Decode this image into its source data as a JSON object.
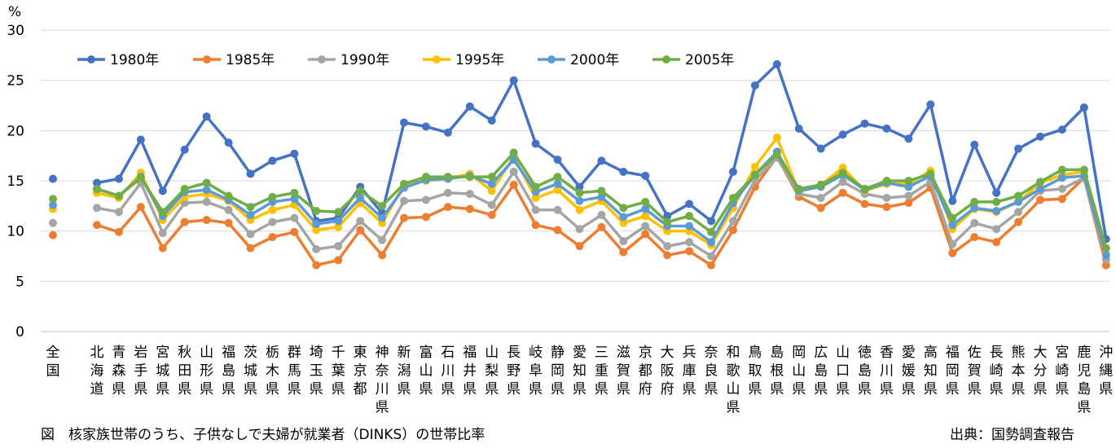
{
  "caption": "図　核家族世帯のうち、子供なしで夫婦が就業者（DINKS）の世帯比率",
  "source": "出典：国勢調査報告",
  "chart_data": {
    "type": "line",
    "ylabel": "%",
    "ylim": [
      0,
      30
    ],
    "yticks": [
      0,
      5,
      10,
      15,
      20,
      25,
      30
    ],
    "grid": true,
    "legend_position": "top-left",
    "categories": [
      "全国",
      "北海道",
      "青森県",
      "岩手県",
      "宮城県",
      "秋田県",
      "山形県",
      "福島県",
      "茨城県",
      "栃木県",
      "群馬県",
      "埼玉県",
      "千葉県",
      "東京都",
      "神奈川県",
      "新潟県",
      "富山県",
      "石川県",
      "福井県",
      "山梨県",
      "長野県",
      "岐阜県",
      "静岡県",
      "愛知県",
      "三重県",
      "滋賀県",
      "京都府",
      "大阪府",
      "兵庫県",
      "奈良県",
      "和歌山県",
      "鳥取県",
      "島根県",
      "岡山県",
      "広島県",
      "山口県",
      "徳島県",
      "香川県",
      "愛媛県",
      "高知県",
      "福岡県",
      "佐賀県",
      "長崎県",
      "熊本県",
      "大分県",
      "宮崎県",
      "鹿児島県",
      "沖縄県"
    ],
    "series": [
      {
        "name": "1980年",
        "color": "#4472C4",
        "values": [
          15.2,
          14.8,
          15.2,
          19.1,
          14.0,
          18.1,
          21.4,
          18.8,
          15.7,
          17.0,
          17.7,
          11.0,
          11.3,
          14.4,
          11.8,
          20.8,
          20.4,
          19.8,
          22.4,
          21.0,
          25.0,
          18.7,
          17.1,
          14.4,
          17.0,
          15.9,
          15.5,
          11.5,
          12.7,
          11.0,
          15.9,
          24.5,
          26.6,
          20.2,
          18.2,
          19.6,
          20.7,
          20.2,
          19.2,
          22.6,
          13.0,
          18.6,
          13.8,
          18.2,
          19.4,
          20.1,
          22.3,
          9.2
        ]
      },
      {
        "name": "1985年",
        "color": "#ED7D31",
        "values": [
          9.6,
          10.6,
          9.9,
          12.4,
          8.3,
          10.9,
          11.1,
          10.8,
          8.3,
          9.4,
          9.9,
          6.6,
          7.1,
          10.1,
          7.6,
          11.3,
          11.4,
          12.4,
          12.2,
          11.6,
          14.6,
          10.6,
          10.1,
          8.5,
          10.4,
          7.9,
          9.7,
          7.6,
          8.0,
          6.6,
          10.1,
          14.4,
          17.4,
          13.4,
          12.3,
          13.8,
          12.7,
          12.4,
          12.8,
          14.3,
          7.8,
          9.4,
          8.9,
          10.9,
          13.1,
          13.2,
          15.3,
          6.6
        ]
      },
      {
        "name": "1990年",
        "color": "#A5A5A5",
        "values": [
          10.8,
          12.3,
          11.9,
          14.8,
          9.8,
          12.8,
          12.9,
          12.1,
          9.7,
          10.9,
          11.3,
          8.2,
          8.5,
          11.0,
          9.1,
          13.0,
          13.1,
          13.8,
          13.7,
          12.6,
          15.9,
          12.1,
          12.1,
          10.2,
          11.6,
          9.0,
          10.5,
          8.5,
          8.9,
          7.5,
          11.0,
          15.1,
          17.3,
          13.7,
          13.3,
          14.9,
          13.7,
          13.3,
          13.5,
          14.9,
          8.7,
          10.8,
          10.2,
          11.9,
          14.0,
          14.2,
          15.3,
          7.2
        ]
      },
      {
        "name": "1995年",
        "color": "#FFC000",
        "values": [
          12.2,
          13.8,
          13.3,
          15.8,
          11.1,
          13.4,
          13.7,
          13.0,
          11.1,
          12.1,
          12.6,
          10.1,
          10.4,
          12.8,
          10.8,
          14.6,
          15.0,
          15.2,
          15.7,
          14.0,
          17.4,
          13.3,
          14.1,
          12.1,
          13.0,
          10.8,
          11.5,
          10.0,
          10.0,
          8.6,
          12.3,
          16.4,
          19.3,
          13.9,
          14.6,
          16.3,
          14.0,
          14.7,
          14.7,
          16.0,
          10.2,
          12.2,
          11.9,
          12.9,
          14.8,
          15.6,
          15.9,
          7.7
        ]
      },
      {
        "name": "2000年",
        "color": "#5B9BD5",
        "values": [
          12.6,
          14.2,
          13.5,
          15.4,
          11.5,
          13.9,
          14.1,
          13.1,
          11.6,
          12.9,
          13.2,
          10.7,
          11.0,
          13.3,
          11.3,
          14.3,
          15.1,
          15.2,
          15.5,
          14.7,
          17.1,
          13.9,
          14.7,
          13.0,
          13.4,
          11.4,
          12.2,
          10.5,
          10.5,
          8.9,
          12.8,
          15.6,
          17.9,
          14.0,
          14.4,
          15.6,
          14.1,
          14.8,
          14.4,
          15.5,
          10.6,
          12.3,
          12.0,
          12.9,
          14.2,
          15.3,
          15.5,
          7.6
        ]
      },
      {
        "name": "2005年",
        "color": "#70AD47",
        "values": [
          13.2,
          14.2,
          13.5,
          15.3,
          11.9,
          14.2,
          14.8,
          13.5,
          12.4,
          13.4,
          13.8,
          12.0,
          11.9,
          14.0,
          12.5,
          14.7,
          15.4,
          15.4,
          15.4,
          15.4,
          17.8,
          14.4,
          15.4,
          13.8,
          14.0,
          12.3,
          12.9,
          10.9,
          11.5,
          9.9,
          13.3,
          15.6,
          17.6,
          14.2,
          14.6,
          15.8,
          14.2,
          15.0,
          15.0,
          15.7,
          11.3,
          12.9,
          12.9,
          13.5,
          14.9,
          16.1,
          16.1,
          8.3
        ]
      }
    ]
  }
}
